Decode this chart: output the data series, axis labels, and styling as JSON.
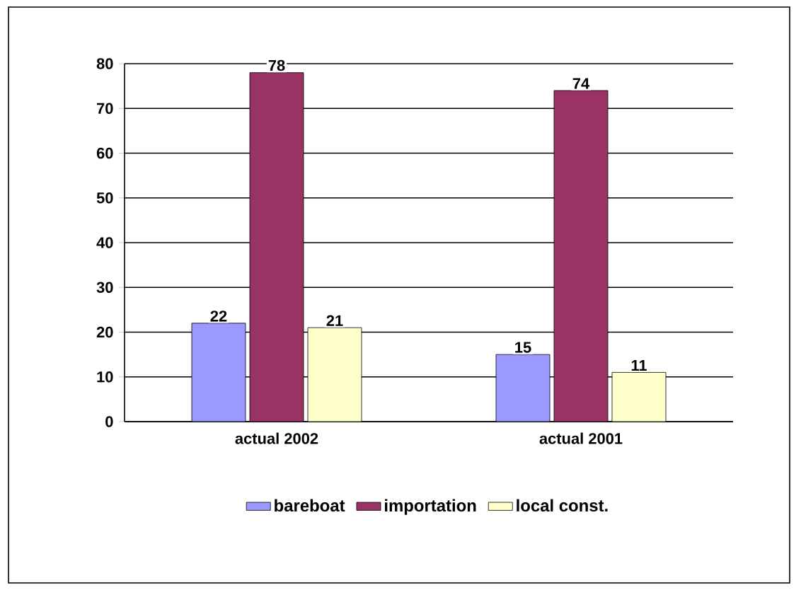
{
  "chart_data": {
    "type": "bar",
    "categories": [
      "actual 2002",
      "actual 2001"
    ],
    "series": [
      {
        "name": "bareboat",
        "color": "#9999ff",
        "values": [
          22,
          15
        ]
      },
      {
        "name": "importation",
        "color": "#993366",
        "values": [
          78,
          74
        ]
      },
      {
        "name": "local const.",
        "color": "#ffffcc",
        "values": [
          21,
          11
        ]
      }
    ],
    "ylim": [
      0,
      80
    ],
    "yticks": [
      0,
      10,
      20,
      30,
      40,
      50,
      60,
      70,
      80
    ],
    "grid": "y",
    "legend": "bottom",
    "data_labels": true
  }
}
